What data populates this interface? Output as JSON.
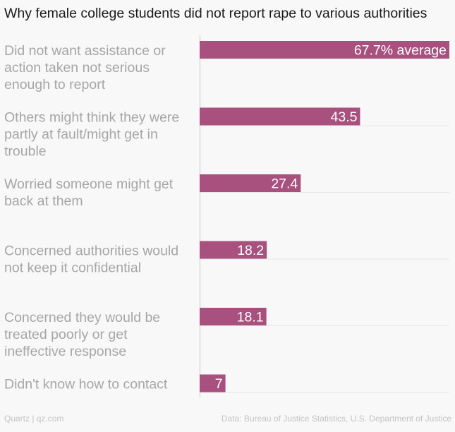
{
  "title": "Why female college students did not report rape to various authorities",
  "footer": {
    "source_left": "Quartz | qz.com",
    "source_right": "Data: Bureau of Justice Statistics, U.S. Department of Justice"
  },
  "colors": {
    "bar": "#a8507e",
    "label": "#a6a6a6",
    "value_text": "#ffffff",
    "axis": "#c8c8c8",
    "grid": "#e6e6e6",
    "background": "#f8f8f8"
  },
  "chart_data": {
    "type": "bar",
    "orientation": "horizontal",
    "categories": [
      [
        "Did not want assistance or",
        "action taken not serious",
        "enough to report"
      ],
      [
        "Others might think they were",
        "partly at fault/might get in",
        "trouble"
      ],
      [
        "Worried someone might get",
        "back at them"
      ],
      [
        "Concerned authorities would",
        "not keep it confidential"
      ],
      [
        "Concerned they would be",
        "treated poorly or get",
        "ineffective response"
      ],
      [
        "Didn't know how to contact"
      ]
    ],
    "values": [
      67.7,
      43.5,
      27.4,
      18.2,
      18.1,
      7
    ],
    "value_labels": [
      "67.7% average",
      "43.5",
      "27.4",
      "18.2",
      "18.1",
      "7"
    ],
    "xlim": [
      0,
      67.7
    ],
    "grid": true,
    "legend": "none"
  }
}
